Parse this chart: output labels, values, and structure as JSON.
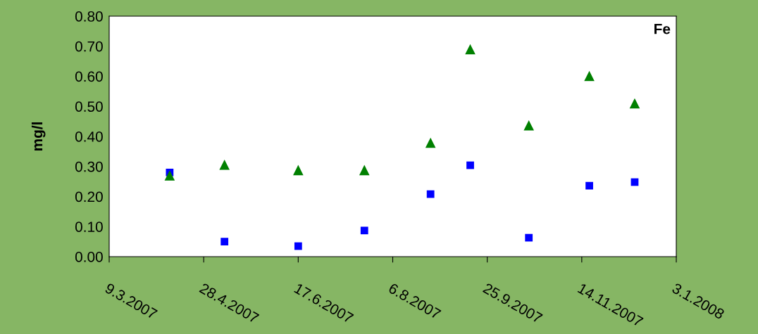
{
  "chart_data": {
    "type": "scatter",
    "ylabel": "mg/l",
    "annotations": [
      "Fe"
    ],
    "x": [
      "2007-04-10",
      "2007-05-09",
      "2007-06-17",
      "2007-07-22",
      "2007-08-26",
      "2007-09-16",
      "2007-10-17",
      "2007-11-18",
      "2007-12-12"
    ],
    "series": [
      {
        "color": "#0000ff",
        "marker": "square",
        "values": [
          0.28,
          0.05,
          0.035,
          0.087,
          0.208,
          0.304,
          0.063,
          0.236,
          0.248
        ]
      },
      {
        "color": "#008000",
        "marker": "triangle",
        "values": [
          0.27,
          0.306,
          0.288,
          0.288,
          0.379,
          0.69,
          0.437,
          0.601,
          0.51
        ]
      }
    ],
    "xlim": [
      "2007-03-09",
      "2008-01-03"
    ],
    "xticks": [
      {
        "value": "2007-03-09",
        "label": "9.3.2007"
      },
      {
        "value": "2007-04-28",
        "label": "28.4.2007"
      },
      {
        "value": "2007-06-17",
        "label": "17.6.2007"
      },
      {
        "value": "2007-08-06",
        "label": "6.8.2007"
      },
      {
        "value": "2007-09-25",
        "label": "25.9.2007"
      },
      {
        "value": "2007-11-14",
        "label": "14.11.2007"
      },
      {
        "value": "2008-01-03",
        "label": "3.1.2008"
      }
    ],
    "ylim": [
      0,
      0.8
    ],
    "yticks": [
      {
        "value": 0,
        "label": "0.00"
      },
      {
        "value": 0.1,
        "label": "0.10"
      },
      {
        "value": 0.2,
        "label": "0.20"
      },
      {
        "value": 0.3,
        "label": "0.30"
      },
      {
        "value": 0.4,
        "label": "0.40"
      },
      {
        "value": 0.5,
        "label": "0.50"
      },
      {
        "value": 0.6,
        "label": "0.60"
      },
      {
        "value": 0.7,
        "label": "0.70"
      },
      {
        "value": 0.8,
        "label": "0.80"
      }
    ],
    "grid": false,
    "legend": false
  }
}
